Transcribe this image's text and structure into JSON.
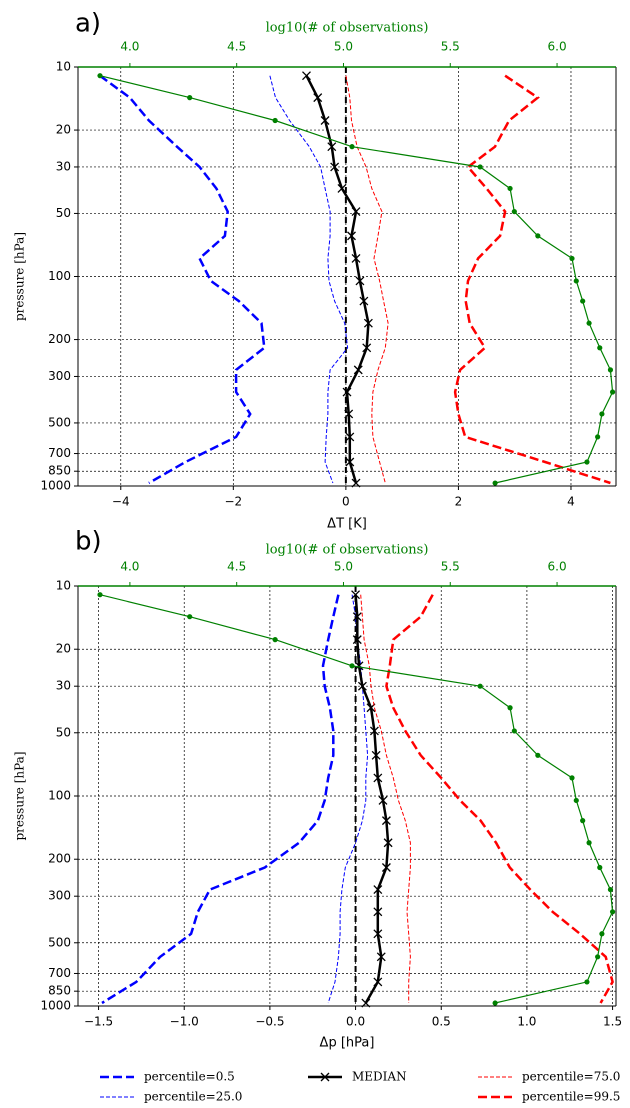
{
  "chart_data": [
    {
      "type": "line",
      "label": "a)",
      "x2label": "log10(# of observations)",
      "xlabel": "ΔT [K]",
      "ylabel": "pressure [hPa]",
      "y": [
        11,
        14,
        18,
        24,
        30,
        38,
        49,
        64,
        82,
        105,
        131,
        167,
        219,
        279,
        356,
        453,
        583,
        768,
        968
      ],
      "ylim": [
        10,
        1000
      ],
      "yticks": [
        10,
        20,
        30,
        50,
        100,
        200,
        300,
        500,
        700,
        850,
        1000
      ],
      "log_y": true,
      "invert_y": true,
      "grid": true,
      "xlim": [
        -4.76,
        4.8
      ],
      "xticks": [
        {
          "value": -4,
          "label": "−4"
        },
        {
          "value": -2,
          "label": "−2"
        },
        0,
        2,
        4
      ],
      "x2lim": [
        3.757,
        6.276
      ],
      "x2ticks": [
        {
          "value": 4,
          "label": "4.0"
        },
        4.5,
        {
          "value": 5,
          "label": "5.0"
        },
        5.5,
        {
          "value": 6,
          "label": "6.0"
        }
      ],
      "ref_line": 0,
      "series": [
        {
          "color": "#0000ff",
          "linestyle": "dashed",
          "linewidth": 2.5,
          "values": [
            -4.37,
            -3.84,
            -3.5,
            -3.0,
            -2.6,
            -2.3,
            -2.1,
            -2.15,
            -2.6,
            -2.4,
            -1.9,
            -1.5,
            -1.45,
            -1.95,
            -1.95,
            -1.7,
            -1.95,
            -2.85,
            -3.5
          ]
        },
        {
          "color": "#0000ff",
          "linestyle": "dashed",
          "linewidth": 1,
          "values": [
            -1.35,
            -1.25,
            -1.0,
            -0.65,
            -0.45,
            -0.37,
            -0.28,
            -0.28,
            -0.32,
            -0.3,
            -0.2,
            -0.02,
            0.03,
            -0.28,
            -0.32,
            -0.32,
            -0.35,
            -0.37,
            -0.23
          ]
        },
        {
          "color": "#000000",
          "linestyle": "solid",
          "linewidth": 2.5,
          "marker": "x",
          "values": [
            -0.7,
            -0.5,
            -0.37,
            -0.25,
            -0.2,
            -0.07,
            0.18,
            0.1,
            0.18,
            0.25,
            0.32,
            0.4,
            0.37,
            0.22,
            0.02,
            0.05,
            0.07,
            0.07,
            0.18
          ]
        },
        {
          "color": "#ff0000",
          "linestyle": "dashed",
          "linewidth": 1,
          "values": [
            0,
            0.07,
            0.1,
            0.2,
            0.36,
            0.46,
            0.64,
            0.57,
            0.5,
            0.6,
            0.67,
            0.75,
            0.7,
            0.57,
            0.48,
            0.46,
            0.48,
            0.6,
            0.7
          ]
        },
        {
          "color": "#ff0000",
          "linestyle": "dashed",
          "linewidth": 2.5,
          "values": [
            2.83,
            3.41,
            2.9,
            2.65,
            2.17,
            2.5,
            2.83,
            2.74,
            2.35,
            2.17,
            2.13,
            2.2,
            2.47,
            2.03,
            1.94,
            2.0,
            2.12,
            3.54,
            4.7
          ]
        },
        {
          "color": "#008000",
          "linestyle": "solid",
          "linewidth": 1.2,
          "marker": "o",
          "axis": "x2",
          "values": [
            3.86,
            4.28,
            4.68,
            5.04,
            5.64,
            5.78,
            5.8,
            5.91,
            6.07,
            6.09,
            6.12,
            6.15,
            6.2,
            6.25,
            6.26,
            6.21,
            6.19,
            6.14,
            5.71
          ]
        }
      ]
    },
    {
      "type": "line",
      "label": "b)",
      "x2label": "log10(# of observations)",
      "xlabel": "Δp [hPa]",
      "ylabel": "pressure [hPa]",
      "y": [
        11,
        14,
        18,
        24,
        30,
        38,
        49,
        64,
        82,
        105,
        131,
        167,
        219,
        279,
        356,
        453,
        583,
        768,
        968
      ],
      "ylim": [
        10,
        1000
      ],
      "yticks": [
        10,
        20,
        30,
        50,
        100,
        200,
        300,
        500,
        700,
        850,
        1000
      ],
      "log_y": true,
      "invert_y": true,
      "grid": true,
      "xlim": [
        -1.62,
        1.52
      ],
      "xticks": [
        {
          "value": -1.5,
          "label": "−1.5"
        },
        {
          "value": -1,
          "label": "−1.0"
        },
        {
          "value": -0.5,
          "label": "−0.5"
        },
        {
          "value": 0,
          "label": "0.0"
        },
        0.5,
        {
          "value": 1,
          "label": "1.0"
        },
        1.5
      ],
      "x2lim": [
        3.757,
        6.276
      ],
      "x2ticks": [
        {
          "value": 4,
          "label": "4.0"
        },
        4.5,
        {
          "value": 5,
          "label": "5.0"
        },
        5.5,
        {
          "value": 6,
          "label": "6.0"
        }
      ],
      "ref_line": 0,
      "series": [
        {
          "name": "percentile=0.5",
          "color": "#0000ff",
          "linestyle": "dashed",
          "linewidth": 2.5,
          "values": [
            -0.1,
            -0.13,
            -0.16,
            -0.19,
            -0.18,
            -0.15,
            -0.13,
            -0.13,
            -0.16,
            -0.18,
            -0.22,
            -0.33,
            -0.53,
            -0.85,
            -0.92,
            -0.96,
            -1.14,
            -1.28,
            -1.48
          ]
        },
        {
          "name": "percentile=25.0",
          "color": "#0000ff",
          "linestyle": "dashed",
          "linewidth": 1,
          "values": [
            -0.02,
            0,
            0.01,
            0.03,
            0.04,
            0.05,
            0.06,
            0.07,
            0.06,
            0.06,
            0.04,
            0,
            -0.06,
            -0.08,
            -0.09,
            -0.09,
            -0.1,
            -0.12,
            -0.16
          ]
        },
        {
          "name": "MEDIAN",
          "color": "#000000",
          "linestyle": "solid",
          "linewidth": 2.5,
          "marker": "x",
          "values": [
            0,
            0.01,
            0.01,
            0.02,
            0.04,
            0.09,
            0.11,
            0.12,
            0.13,
            0.16,
            0.18,
            0.19,
            0.18,
            0.13,
            0.13,
            0.13,
            0.15,
            0.13,
            0.06
          ]
        },
        {
          "name": "percentile=75.0",
          "color": "#ff0000",
          "linestyle": "dashed",
          "linewidth": 1,
          "values": [
            0.03,
            0.04,
            0.05,
            0.08,
            0.09,
            0.11,
            0.15,
            0.18,
            0.22,
            0.25,
            0.29,
            0.32,
            0.32,
            0.31,
            0.3,
            0.31,
            0.32,
            0.31,
            0.31
          ]
        },
        {
          "name": "percentile=99.5",
          "color": "#ff0000",
          "linestyle": "dashed",
          "linewidth": 2.5,
          "values": [
            0.45,
            0.38,
            0.22,
            0.2,
            0.18,
            0.22,
            0.29,
            0.38,
            0.5,
            0.61,
            0.73,
            0.82,
            0.9,
            1.02,
            1.15,
            1.31,
            1.46,
            1.5,
            1.43
          ]
        },
        {
          "color": "#008000",
          "linestyle": "solid",
          "linewidth": 1.2,
          "marker": "o",
          "axis": "x2",
          "values": [
            3.86,
            4.28,
            4.68,
            5.04,
            5.64,
            5.78,
            5.8,
            5.91,
            6.07,
            6.09,
            6.12,
            6.15,
            6.2,
            6.25,
            6.26,
            6.21,
            6.19,
            6.14,
            5.71
          ]
        }
      ]
    }
  ]
}
